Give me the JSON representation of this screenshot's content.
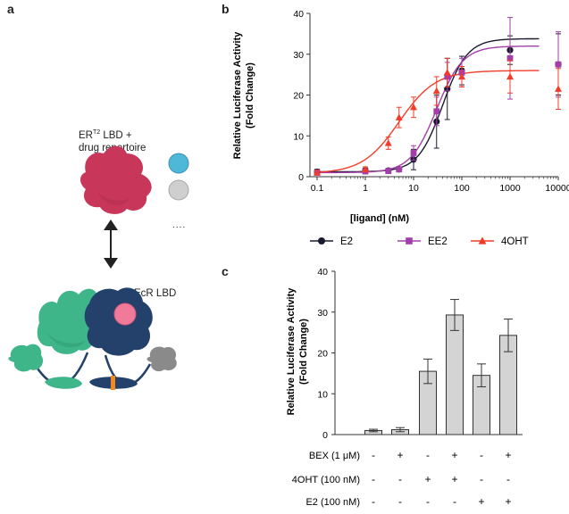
{
  "panels": {
    "a": {
      "letter": "a",
      "er_label_main": "ER",
      "er_label_sup": "T2",
      "er_label_rest": " LBD +",
      "er_label_line2": "drug repertoire",
      "ecr_label": "EcR LBD",
      "ellipsis": "....",
      "colors": {
        "er_protein": "#c8365a",
        "ligand_blue": "#4fb8d8",
        "ligand_grey": "#c8c8c8",
        "ecr_green": "#3fb58a",
        "ecr_navy": "#23416b",
        "ligand_pink": "#f07a9a",
        "dbd_grey": "#8a8a8a",
        "linker_orange": "#f08a1c"
      }
    },
    "b": {
      "letter": "b"
    },
    "c": {
      "letter": "c"
    }
  },
  "chart_data": [
    {
      "type": "scatter",
      "panel": "b",
      "title": "",
      "xlabel": "[ligand] (nM)",
      "ylabel_line1": "Relative Luciferase Activity",
      "ylabel_line2": "(Fold Change)",
      "xscale": "log",
      "xlim": [
        0.1,
        10000
      ],
      "ylim": [
        0,
        40
      ],
      "x_ticks": [
        0.1,
        1,
        10,
        100,
        1000,
        10000
      ],
      "x_tick_labels": [
        "0.1",
        "1",
        "10",
        "100",
        "1000",
        "10000"
      ],
      "y_ticks": [
        0,
        10,
        20,
        30,
        40
      ],
      "y_tick_labels": [
        "0",
        "10",
        "20",
        "30",
        "40"
      ],
      "grid": false,
      "legend_position": "bottom",
      "series": [
        {
          "name": "E2",
          "color": "#1a1a2e",
          "marker": "circle",
          "x": [
            0.1,
            1,
            3,
            5,
            10,
            30,
            50,
            100,
            1000,
            10000
          ],
          "y": [
            1.2,
            1.5,
            1.5,
            1.8,
            4.2,
            13.5,
            21.5,
            26.0,
            31.0,
            27.5
          ],
          "err": [
            0.6,
            0.6,
            0.5,
            0.6,
            2.5,
            6.5,
            7.5,
            3.5,
            3.5,
            7.5
          ],
          "fit": {
            "bottom": 1.2,
            "top": 33.8,
            "ec50": 40,
            "hill": 1.7
          }
        },
        {
          "name": "EE2",
          "color": "#a23ea8",
          "marker": "square",
          "x": [
            0.1,
            1,
            3,
            5,
            10,
            30,
            50,
            100,
            1000,
            10000
          ],
          "y": [
            1.0,
            1.3,
            1.4,
            1.8,
            5.8,
            16.0,
            24.5,
            25.5,
            29.0,
            27.5
          ],
          "err": [
            0.6,
            0.6,
            0.6,
            0.6,
            1.8,
            3.5,
            3.5,
            3.5,
            10.0,
            8.0
          ],
          "fit": {
            "bottom": 1.0,
            "top": 32.0,
            "ec50": 30,
            "hill": 1.6
          }
        },
        {
          "name": "4OHT",
          "color": "#f03c28",
          "marker": "triangle",
          "x": [
            0.1,
            1,
            3,
            5,
            10,
            30,
            50,
            100,
            1000,
            10000
          ],
          "y": [
            1.0,
            1.8,
            8.2,
            14.5,
            17.0,
            21.0,
            25.5,
            24.5,
            24.5,
            21.5
          ],
          "err": [
            0.5,
            0.6,
            1.5,
            2.5,
            2.5,
            3.5,
            3.5,
            2.5,
            4.0,
            5.0
          ],
          "fit": {
            "bottom": 0.8,
            "top": 26.0,
            "ec50": 5,
            "hill": 1.15
          }
        }
      ]
    },
    {
      "type": "bar",
      "panel": "c",
      "title": "",
      "xlabel": "",
      "ylabel_line1": "Relative Luciferase Activity",
      "ylabel_line2": "(Fold Change)",
      "ylim": [
        0,
        40
      ],
      "y_ticks": [
        0,
        10,
        20,
        30,
        40
      ],
      "y_tick_labels": [
        "0",
        "10",
        "20",
        "30",
        "40"
      ],
      "grid": false,
      "bar_color": "#d4d4d4",
      "values": [
        1.0,
        1.2,
        15.5,
        29.3,
        14.5,
        24.3
      ],
      "errors": [
        0.3,
        0.5,
        3.0,
        3.8,
        2.8,
        4.0
      ],
      "conditions": [
        {
          "label": "BEX (1 μM)",
          "marks": [
            "-",
            "+",
            "-",
            "+",
            "-",
            "+"
          ]
        },
        {
          "label": "4OHT (100 nM)",
          "marks": [
            "-",
            "-",
            "+",
            "+",
            "-",
            "-"
          ]
        },
        {
          "label": "E2 (100 nM)",
          "marks": [
            "-",
            "-",
            "-",
            "-",
            "+",
            "+"
          ]
        }
      ]
    }
  ]
}
